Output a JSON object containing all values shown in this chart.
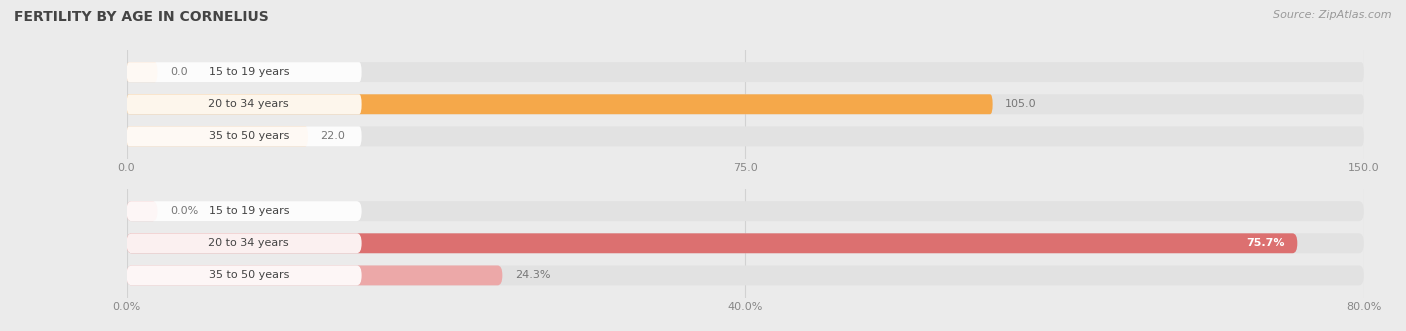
{
  "title": "FERTILITY BY AGE IN CORNELIUS",
  "source": "Source: ZipAtlas.com",
  "top_chart": {
    "categories": [
      "15 to 19 years",
      "20 to 34 years",
      "35 to 50 years"
    ],
    "values": [
      0.0,
      105.0,
      22.0
    ],
    "xlim": [
      0,
      150
    ],
    "xticks": [
      0.0,
      75.0,
      150.0
    ],
    "bar_color_main": "#F5A84A",
    "bar_color_light": "#F9C99A",
    "bar_color_tiny": "#F9C99A"
  },
  "bottom_chart": {
    "categories": [
      "15 to 19 years",
      "20 to 34 years",
      "35 to 50 years"
    ],
    "values": [
      0.0,
      75.7,
      24.3
    ],
    "xlim": [
      0,
      80
    ],
    "xticks": [
      0.0,
      40.0,
      80.0
    ],
    "xtick_labels": [
      "0.0%",
      "40.0%",
      "80.0%"
    ],
    "bar_color_main": "#DC7070",
    "bar_color_light": "#ECA8A8",
    "bar_color_tiny": "#ECA8A8"
  },
  "bg_color": "#ebebeb",
  "bar_bg_color": "#e2e2e2",
  "label_bg_color": "#ffffff",
  "title_fontsize": 10,
  "source_fontsize": 8,
  "label_fontsize": 8,
  "tick_fontsize": 8,
  "cat_fontsize": 8
}
